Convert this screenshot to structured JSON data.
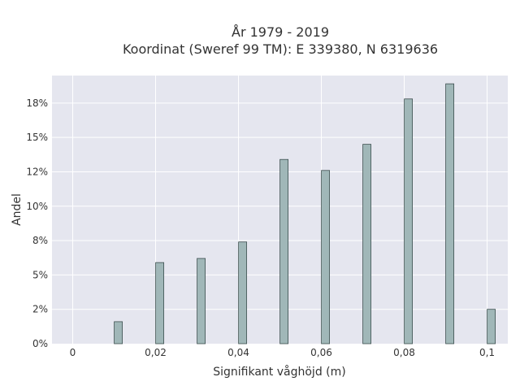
{
  "chart_data": {
    "type": "bar",
    "title_line1": "År 1979 - 2019",
    "title_line2": "Koordinat (Sweref 99 TM): E 339380, N 6319636",
    "xlabel": "Signifikant våghöjd (m)",
    "ylabel": "Andel",
    "x_ticks": [
      "0",
      "0,02",
      "0,04",
      "0,06",
      "0,08",
      "0,1"
    ],
    "x_tick_values": [
      0,
      0.02,
      0.04,
      0.06,
      0.08,
      0.1
    ],
    "y_ticks": [
      "0%",
      "2%",
      "5%",
      "8%",
      "10%",
      "12%",
      "15%",
      "18%"
    ],
    "y_tick_values": [
      0,
      2.5,
      5,
      7.5,
      10,
      12.5,
      15,
      17.5
    ],
    "xlim": [
      -0.005,
      0.105
    ],
    "ylim": [
      0,
      19.5
    ],
    "grid": true,
    "bar_color": "#a0b7b8",
    "bar_edge_color": "#3d4f4f",
    "plot_background": "#e5e6ef",
    "x": [
      0.011,
      0.021,
      0.031,
      0.041,
      0.051,
      0.061,
      0.071,
      0.081,
      0.091,
      0.101
    ],
    "values": [
      1.6,
      5.9,
      6.2,
      7.4,
      13.4,
      12.6,
      14.5,
      17.8,
      18.9,
      2.5
    ]
  }
}
